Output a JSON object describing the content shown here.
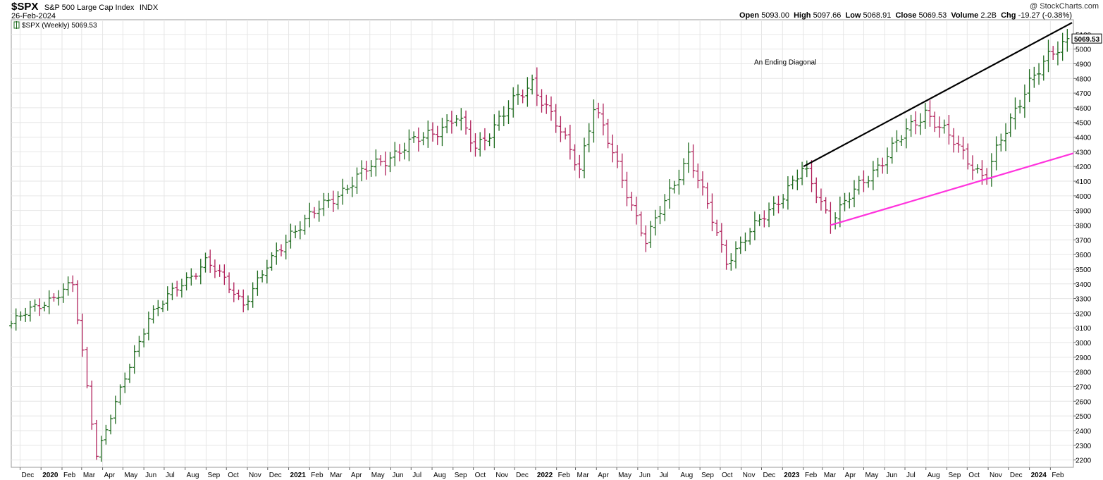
{
  "header": {
    "symbol": "$SPX",
    "description": "S&P 500 Large Cap Index",
    "exchange": "INDX",
    "date": "26-Feb-2024",
    "credit": "@ StockCharts.com",
    "ohlc": {
      "open_label": "Open",
      "open": "5093.00",
      "high_label": "High",
      "high": "5097.66",
      "low_label": "Low",
      "low": "5068.91",
      "close_label": "Close",
      "close": "5069.53",
      "volume_label": "Volume",
      "volume": "2.2B",
      "chg_label": "Chg",
      "chg": "-19.27 (-0.38%)"
    },
    "legend": "$SPX (Weekly) 5069.53"
  },
  "colors": {
    "up": "#1f6b1f",
    "down": "#b0205a",
    "grid": "#e6e6e6",
    "upper_line": "#000000",
    "lower_line": "#ff33dd",
    "price_box": "#000000"
  },
  "chart_data": {
    "type": "ohlc",
    "title": "$SPX S&P 500 Large Cap Index INDX",
    "period": "Weekly",
    "ylim": [
      2150,
      5200
    ],
    "y_ticks": [
      2200,
      2300,
      2400,
      2500,
      2600,
      2700,
      2800,
      2900,
      3000,
      3100,
      3200,
      3300,
      3400,
      3500,
      3600,
      3700,
      3800,
      3900,
      4000,
      4100,
      4200,
      4300,
      4400,
      4500,
      4600,
      4700,
      4800,
      4900,
      5000,
      5100
    ],
    "x_labels": [
      "Dec",
      "2020",
      "Feb",
      "Mar",
      "Apr",
      "May",
      "Jun",
      "Jul",
      "Aug",
      "Sep",
      "Oct",
      "Nov",
      "Dec",
      "2021",
      "Feb",
      "Mar",
      "Apr",
      "May",
      "Jun",
      "Jul",
      "Aug",
      "Sep",
      "Oct",
      "Nov",
      "Dec",
      "2022",
      "Feb",
      "Mar",
      "Apr",
      "May",
      "Jun",
      "Jul",
      "Aug",
      "Sep",
      "Oct",
      "Nov",
      "Dec",
      "2023",
      "Feb",
      "Mar",
      "Apr",
      "May",
      "Jun",
      "Jul",
      "Aug",
      "Sep",
      "Oct",
      "Nov",
      "Dec",
      "2024",
      "Feb"
    ],
    "x_label_dates": [
      "2019-12-01",
      "2020-01-01",
      "2020-02-01",
      "2020-03-01",
      "2020-04-01",
      "2020-05-01",
      "2020-06-01",
      "2020-07-01",
      "2020-08-01",
      "2020-09-01",
      "2020-10-01",
      "2020-11-01",
      "2020-12-01",
      "2021-01-01",
      "2021-02-01",
      "2021-03-01",
      "2021-04-01",
      "2021-05-01",
      "2021-06-01",
      "2021-07-01",
      "2021-08-01",
      "2021-09-01",
      "2021-10-01",
      "2021-11-01",
      "2021-12-01",
      "2022-01-01",
      "2022-02-01",
      "2022-03-01",
      "2022-04-01",
      "2022-05-01",
      "2022-06-01",
      "2022-07-01",
      "2022-08-01",
      "2022-09-01",
      "2022-10-01",
      "2022-11-01",
      "2022-12-01",
      "2023-01-01",
      "2023-02-01",
      "2023-03-01",
      "2023-04-01",
      "2023-05-01",
      "2023-06-01",
      "2023-07-01",
      "2023-08-01",
      "2023-09-01",
      "2023-10-01",
      "2023-11-01",
      "2023-12-01",
      "2024-01-01",
      "2024-02-01"
    ],
    "x_range": [
      "2019-11-18",
      "2024-03-06"
    ],
    "last_price": "5069.53",
    "annotation": "An Ending Diagonal",
    "annotation_date": "2022-11-20",
    "annotation_value": 4895,
    "trendlines": [
      {
        "name": "upper",
        "x": [
          "2023-02-01",
          "2024-03-04"
        ],
        "y": [
          4200,
          5180
        ]
      },
      {
        "name": "lower",
        "x": [
          "2023-03-13",
          "2024-03-06"
        ],
        "y": [
          3800,
          4290
        ]
      }
    ],
    "key_points": {
      "x": [
        "2019-11-18",
        "2019-12-23",
        "2020-02-17",
        "2020-03-23",
        "2020-06-08",
        "2020-09-01",
        "2020-10-26",
        "2021-01-04",
        "2021-05-03",
        "2021-09-06",
        "2021-10-04",
        "2021-12-27",
        "2022-03-07",
        "2022-03-28",
        "2022-06-13",
        "2022-08-15",
        "2022-10-10",
        "2022-12-12",
        "2023-02-01",
        "2023-03-13",
        "2023-07-31",
        "2023-10-27",
        "2023-12-29",
        "2024-02-26"
      ],
      "y": [
        3130,
        3240,
        3390,
        2240,
        3180,
        3560,
        3270,
        3750,
        4200,
        4530,
        4330,
        4780,
        4190,
        4620,
        3690,
        4290,
        3560,
        3900,
        4180,
        3840,
        4580,
        4120,
        4770,
        5070
      ]
    }
  }
}
